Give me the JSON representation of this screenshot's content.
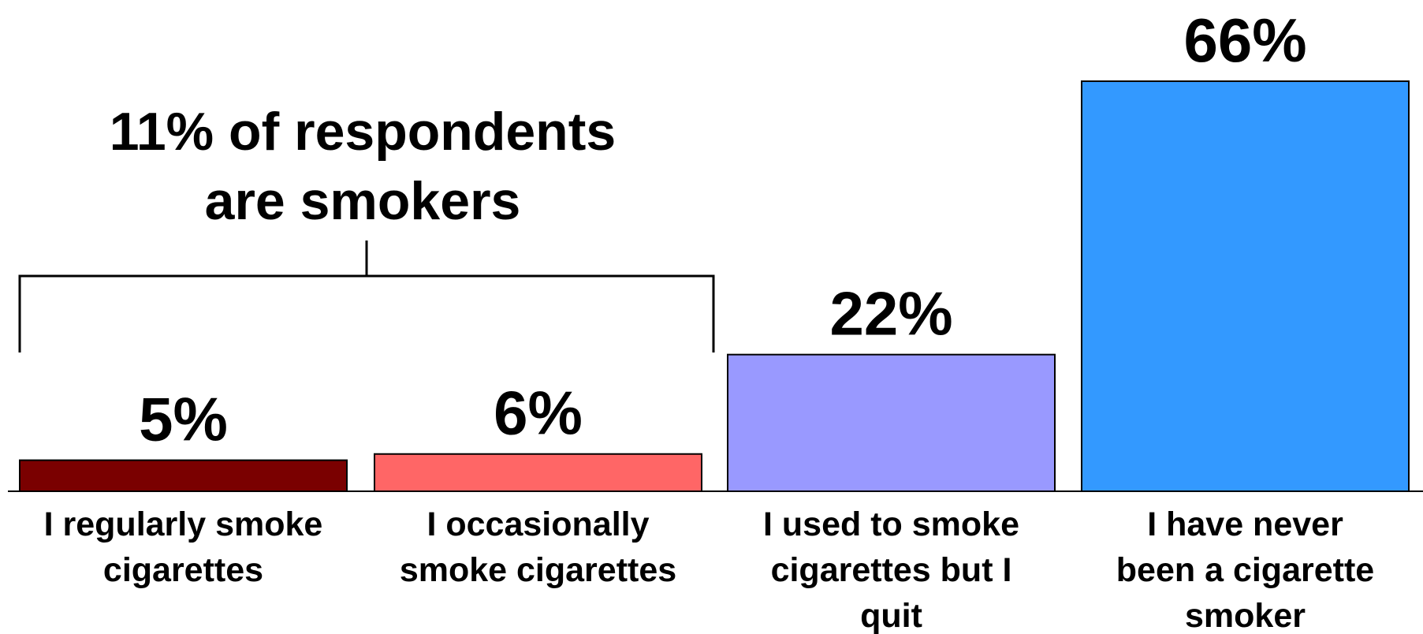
{
  "chart_data": {
    "type": "bar",
    "categories": [
      [
        "I regularly smoke",
        "cigarettes"
      ],
      [
        "I occasionally",
        "smoke cigarettes"
      ],
      [
        "I used to smoke",
        "cigarettes but I",
        "quit"
      ],
      [
        "I have never",
        "been a cigarette",
        "smoker"
      ]
    ],
    "values": [
      5,
      6,
      22,
      66
    ],
    "value_labels": [
      "5%",
      "6%",
      "22%",
      "66%"
    ],
    "colors": [
      "#7a0000",
      "#ff6666",
      "#9999ff",
      "#3399ff"
    ],
    "annotation": {
      "lines": [
        "11% of respondents",
        "are smokers"
      ],
      "bracket_over": [
        0,
        1
      ]
    },
    "title": "",
    "xlabel": "",
    "ylabel": "",
    "ylim": [
      0,
      66
    ],
    "grid": false
  }
}
